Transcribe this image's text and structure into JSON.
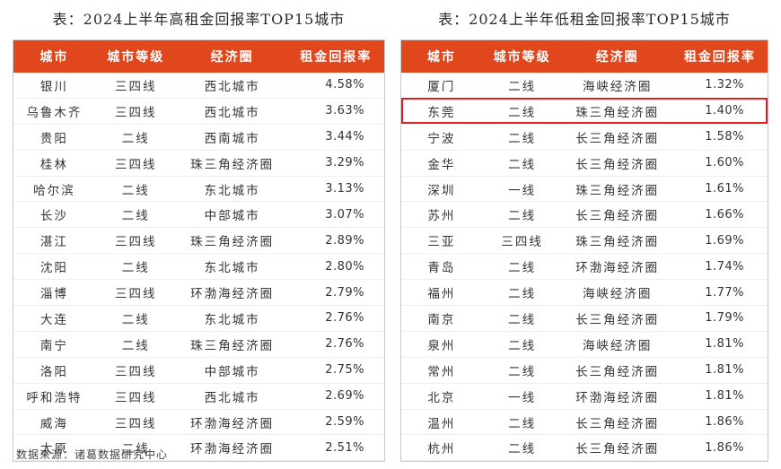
{
  "left": {
    "title": "表：2024上半年高租金回报率TOP15城市",
    "headers": [
      "城市",
      "城市等级",
      "经济圈",
      "租金回报率"
    ],
    "rows": [
      [
        "银川",
        "三四线",
        "西北城市",
        "4.58%"
      ],
      [
        "乌鲁木齐",
        "三四线",
        "西北城市",
        "3.63%"
      ],
      [
        "贵阳",
        "二线",
        "西南城市",
        "3.44%"
      ],
      [
        "桂林",
        "三四线",
        "珠三角经济圈",
        "3.29%"
      ],
      [
        "哈尔滨",
        "二线",
        "东北城市",
        "3.13%"
      ],
      [
        "长沙",
        "二线",
        "中部城市",
        "3.07%"
      ],
      [
        "湛江",
        "三四线",
        "珠三角经济圈",
        "2.89%"
      ],
      [
        "沈阳",
        "二线",
        "东北城市",
        "2.80%"
      ],
      [
        "淄博",
        "三四线",
        "环渤海经济圈",
        "2.79%"
      ],
      [
        "大连",
        "二线",
        "东北城市",
        "2.76%"
      ],
      [
        "南宁",
        "二线",
        "珠三角经济圈",
        "2.76%"
      ],
      [
        "洛阳",
        "三四线",
        "中部城市",
        "2.75%"
      ],
      [
        "呼和浩特",
        "三四线",
        "西北城市",
        "2.69%"
      ],
      [
        "威海",
        "三四线",
        "环渤海经济圈",
        "2.59%"
      ],
      [
        "太原",
        "二线",
        "环渤海经济圈",
        "2.51%"
      ]
    ]
  },
  "right": {
    "title": "表：2024上半年低租金回报率TOP15城市",
    "headers": [
      "城市",
      "城市等级",
      "经济圈",
      "租金回报率"
    ],
    "highlight_row": 1,
    "rows": [
      [
        "厦门",
        "二线",
        "海峡经济圈",
        "1.32%"
      ],
      [
        "东莞",
        "二线",
        "珠三角经济圈",
        "1.40%"
      ],
      [
        "宁波",
        "二线",
        "长三角经济圈",
        "1.58%"
      ],
      [
        "金华",
        "二线",
        "长三角经济圈",
        "1.60%"
      ],
      [
        "深圳",
        "一线",
        "珠三角经济圈",
        "1.61%"
      ],
      [
        "苏州",
        "二线",
        "长三角经济圈",
        "1.66%"
      ],
      [
        "三亚",
        "三四线",
        "珠三角经济圈",
        "1.69%"
      ],
      [
        "青岛",
        "二线",
        "环渤海经济圈",
        "1.74%"
      ],
      [
        "福州",
        "二线",
        "海峡经济圈",
        "1.77%"
      ],
      [
        "南京",
        "二线",
        "长三角经济圈",
        "1.79%"
      ],
      [
        "泉州",
        "二线",
        "海峡经济圈",
        "1.81%"
      ],
      [
        "常州",
        "二线",
        "长三角经济圈",
        "1.81%"
      ],
      [
        "北京",
        "一线",
        "环渤海经济圈",
        "1.81%"
      ],
      [
        "温州",
        "二线",
        "长三角经济圈",
        "1.86%"
      ],
      [
        "杭州",
        "二线",
        "长三角经济圈",
        "1.86%"
      ]
    ]
  },
  "source": "数据来源：诸葛数据研究中心",
  "colors": {
    "header_bg": "#e1471d",
    "highlight": "#e02020"
  }
}
